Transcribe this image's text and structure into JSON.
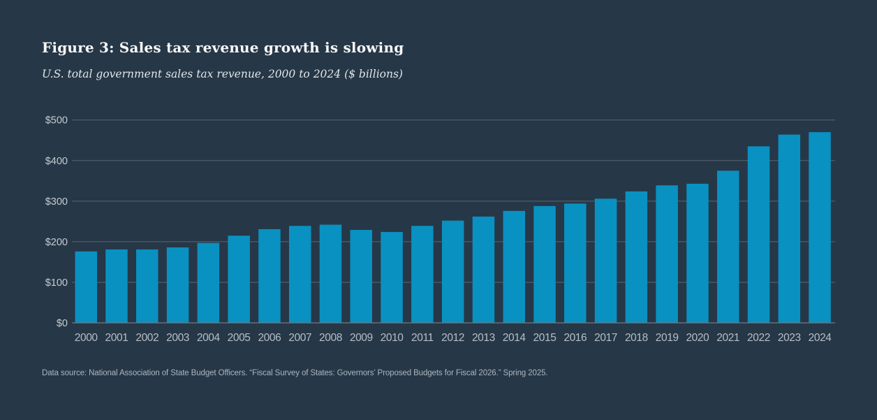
{
  "figure": {
    "title": "Figure 3: Sales tax revenue growth is slowing",
    "subtitle": "U.S. total government sales tax revenue, 2000 to 2024 ($ billions)",
    "source": "Data source: National Association of State Budget Officers. “Fiscal Survey of States: Governors’ Proposed Budgets for Fiscal 2026.” Spring 2025."
  },
  "colors": {
    "background": "#263747",
    "bar": "#0991c1",
    "gridline": "#5a6771",
    "axis_line": "#6e7b85",
    "y_tick_label": "#c5ccd2",
    "x_tick_label": "#b7bfc7",
    "title_text": "#f7f8f9",
    "subtitle_text": "#e2e6ea",
    "source_text": "#adb6be"
  },
  "chart_data": {
    "type": "bar",
    "title": "Figure 3: Sales tax revenue growth is slowing",
    "subtitle": "U.S. total government sales tax revenue, 2000 to 2024 ($ billions)",
    "categories": [
      "2000",
      "2001",
      "2002",
      "2003",
      "2004",
      "2005",
      "2006",
      "2007",
      "2008",
      "2009",
      "2010",
      "2011",
      "2012",
      "2013",
      "2014",
      "2015",
      "2016",
      "2017",
      "2018",
      "2019",
      "2020",
      "2021",
      "2022",
      "2023",
      "2024"
    ],
    "values": [
      176,
      181,
      181,
      186,
      197,
      215,
      231,
      239,
      242,
      229,
      224,
      239,
      252,
      262,
      276,
      288,
      294,
      306,
      324,
      339,
      343,
      375,
      435,
      464,
      470
    ],
    "xlabel": "",
    "ylabel": "",
    "ylim": [
      0,
      500
    ],
    "yticks": [
      0,
      100,
      200,
      300,
      400,
      500
    ],
    "ytick_labels": [
      "$0",
      "$100",
      "$200",
      "$300",
      "$400",
      "$500"
    ],
    "grid": true,
    "legend": false,
    "bar_color": "#0991c1"
  }
}
